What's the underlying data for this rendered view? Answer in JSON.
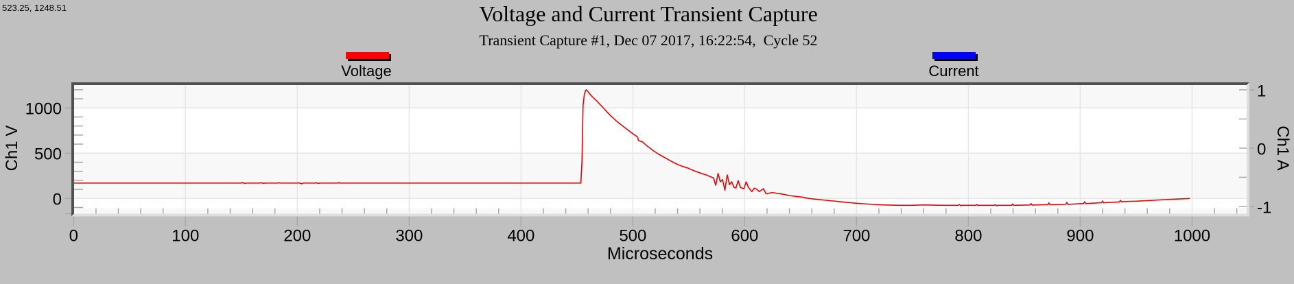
{
  "cursor_readout": "523.25, 1248.51",
  "chart_data": {
    "type": "line",
    "title": "Voltage and Current Transient Capture",
    "subtitle": "Transient Capture #1, Dec 07 2017, 16:22:54,  Cycle 52",
    "xlabel": "Microseconds",
    "ylabel": "Ch1 V",
    "ylabel_right": "Ch1 A",
    "xlim": [
      0,
      1049
    ],
    "ylim": [
      -168,
      1252
    ],
    "ylim_right": [
      -1.124,
      1.082
    ],
    "x_ticks": [
      0,
      100,
      200,
      300,
      400,
      500,
      600,
      700,
      800,
      900,
      1000
    ],
    "x_tick_labels": [
      "0",
      "100",
      "200",
      "300",
      "400",
      "500",
      "600",
      "700",
      "800",
      "900",
      "1000"
    ],
    "x_minor_step": 20,
    "y_ticks": [
      0,
      500,
      1000
    ],
    "y_tick_labels": [
      "0",
      "500",
      "1000"
    ],
    "y_minor_step": 100,
    "y_right_ticks": [
      -1,
      0,
      1
    ],
    "y_right_tick_labels": [
      "-1",
      "0",
      "1"
    ],
    "y_right_minor_step": 0.5,
    "grid": true,
    "legend_position": "top",
    "legend": [
      {
        "label": "Voltage",
        "color": "#ff0000"
      },
      {
        "label": "Current",
        "color": "#0000ff"
      }
    ],
    "series": [
      {
        "name": "Voltage",
        "axis": "left",
        "color": "#ee0000",
        "points": [
          [
            0,
            170
          ],
          [
            150,
            170
          ],
          [
            151,
            177
          ],
          [
            152,
            170
          ],
          [
            153,
            166
          ],
          [
            154,
            170
          ],
          [
            166,
            170
          ],
          [
            167,
            174
          ],
          [
            168,
            172
          ],
          [
            169,
            170
          ],
          [
            170,
            166
          ],
          [
            171,
            170
          ],
          [
            183,
            170
          ],
          [
            184,
            174
          ],
          [
            185,
            170
          ],
          [
            200,
            170
          ],
          [
            201,
            174
          ],
          [
            202,
            170
          ],
          [
            203,
            166
          ],
          [
            204,
            162
          ],
          [
            205,
            170
          ],
          [
            216,
            170
          ],
          [
            217,
            174
          ],
          [
            218,
            170
          ],
          [
            219,
            166
          ],
          [
            220,
            170
          ],
          [
            236,
            170
          ],
          [
            237,
            176
          ],
          [
            238,
            170
          ],
          [
            453.5,
            170
          ],
          [
            454.5,
            400
          ],
          [
            455.5,
            1030
          ],
          [
            456.6,
            1145
          ],
          [
            457.5,
            1185
          ],
          [
            458.3,
            1200
          ],
          [
            459.5,
            1185
          ],
          [
            461.4,
            1156
          ],
          [
            464,
            1120
          ],
          [
            467.5,
            1080
          ],
          [
            470.5,
            1040
          ],
          [
            473.6,
            1000
          ],
          [
            476.7,
            958
          ],
          [
            479.8,
            917
          ],
          [
            485.5,
            853
          ],
          [
            488,
            828
          ],
          [
            492,
            790
          ],
          [
            496,
            752
          ],
          [
            500,
            714
          ],
          [
            503,
            690
          ],
          [
            504.3,
            676
          ],
          [
            505,
            640
          ],
          [
            508.4,
            626
          ],
          [
            513,
            578
          ],
          [
            518.6,
            525
          ],
          [
            523,
            490
          ],
          [
            528.8,
            449
          ],
          [
            534,
            414
          ],
          [
            539,
            381
          ],
          [
            544,
            356
          ],
          [
            549.2,
            336
          ],
          [
            554,
            310
          ],
          [
            559.4,
            285
          ],
          [
            565.6,
            260
          ],
          [
            569.7,
            239
          ],
          [
            572.1,
            227
          ],
          [
            574.1,
            146
          ],
          [
            576.2,
            277
          ],
          [
            578.2,
            184
          ],
          [
            580.2,
            209
          ],
          [
            582.3,
            91
          ],
          [
            584.4,
            260
          ],
          [
            586.4,
            152
          ],
          [
            588.4,
            184
          ],
          [
            590.5,
            121
          ],
          [
            592.1,
            116
          ],
          [
            594.2,
            197
          ],
          [
            596.2,
            121
          ],
          [
            599.3,
            108
          ],
          [
            601.3,
            184
          ],
          [
            603.4,
            121
          ],
          [
            606.4,
            76
          ],
          [
            608.5,
            114
          ],
          [
            610.9,
            101
          ],
          [
            613,
            76
          ],
          [
            616.7,
            108
          ],
          [
            619.1,
            53
          ],
          [
            624.8,
            65
          ],
          [
            633,
            50
          ],
          [
            641.1,
            30
          ],
          [
            651.3,
            15
          ],
          [
            657.5,
            0
          ],
          [
            668,
            -14
          ],
          [
            678,
            -26
          ],
          [
            688,
            -39
          ],
          [
            698.3,
            -51
          ],
          [
            708,
            -60
          ],
          [
            718.7,
            -68
          ],
          [
            729,
            -73
          ],
          [
            739,
            -76
          ],
          [
            749,
            -76
          ],
          [
            759.6,
            -71
          ],
          [
            770,
            -74
          ],
          [
            780,
            -76
          ],
          [
            791,
            -76
          ],
          [
            792,
            -66
          ],
          [
            793,
            -80
          ],
          [
            794,
            -76
          ],
          [
            806.6,
            -76
          ],
          [
            807.6,
            -66
          ],
          [
            808.6,
            -78
          ],
          [
            809.6,
            -76
          ],
          [
            823,
            -76
          ],
          [
            824,
            -68
          ],
          [
            825,
            -80
          ],
          [
            826,
            -76
          ],
          [
            838.6,
            -76
          ],
          [
            839.6,
            -60
          ],
          [
            840.6,
            -76
          ],
          [
            855,
            -72
          ],
          [
            856,
            -56
          ],
          [
            857,
            -74
          ],
          [
            858,
            -72
          ],
          [
            871,
            -68
          ],
          [
            872,
            -48
          ],
          [
            873,
            -70
          ],
          [
            874,
            -68
          ],
          [
            887,
            -64
          ],
          [
            888,
            -44
          ],
          [
            889,
            -66
          ],
          [
            890,
            -64
          ],
          [
            903,
            -56
          ],
          [
            904,
            -36
          ],
          [
            905,
            -58
          ],
          [
            906,
            -56
          ],
          [
            919,
            -46
          ],
          [
            920,
            -28
          ],
          [
            921,
            -48
          ],
          [
            922,
            -46
          ],
          [
            935,
            -38
          ],
          [
            936,
            -20
          ],
          [
            937,
            -36
          ],
          [
            938,
            -34
          ],
          [
            950,
            -30
          ],
          [
            965,
            -20
          ],
          [
            980,
            -10
          ],
          [
            998,
            0
          ]
        ]
      },
      {
        "name": "Current",
        "axis": "right",
        "color": "#0000ff",
        "points": []
      }
    ]
  }
}
